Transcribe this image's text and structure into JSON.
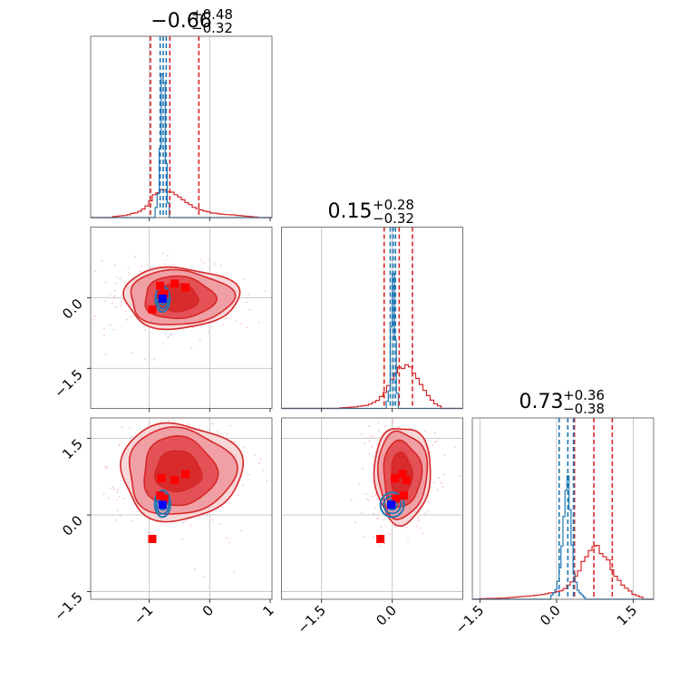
{
  "chart_data": {
    "type": "corner",
    "parameters": 3,
    "titles": [
      {
        "value": "−0.66",
        "sup": "+0.48",
        "sub": "−0.32"
      },
      {
        "value": "0.15",
        "sup": "+0.28",
        "sub": "−0.32"
      },
      {
        "value": "0.73",
        "sup": "+0.36",
        "sub": "−0.38"
      }
    ],
    "axes": {
      "p0": {
        "range": [
          -1.97,
          1.03
        ],
        "ticks": [
          -1,
          0,
          1
        ],
        "tick_labels": [
          "−1",
          "0",
          "1"
        ],
        "ref_lines": [
          -1,
          0
        ]
      },
      "p1": {
        "range": [
          -2.35,
          1.5
        ],
        "ticks": [
          -1.5,
          0.0
        ],
        "tick_labels": [
          "−1.5",
          "0.0"
        ],
        "ref_lines": [
          -1.5,
          0.0
        ]
      },
      "p2": {
        "range": [
          -1.65,
          1.9
        ],
        "ticks": [
          -1.5,
          0.0,
          1.5
        ],
        "tick_labels": [
          "−1.5",
          "0.0",
          "1.5"
        ],
        "ref_lines": [
          -1.5,
          0.0,
          1.5
        ]
      }
    },
    "series": [
      {
        "name": "",
        "color": "#d62728"
      },
      {
        "name": "",
        "color": "#1f77b4"
      }
    ],
    "quantile_lines": {
      "red": [
        [
          -0.98,
          -0.66,
          -0.18
        ],
        [
          -0.17,
          0.15,
          0.43
        ],
        [
          0.35,
          0.73,
          1.09
        ]
      ],
      "blue": [
        [
          -0.82,
          -0.77,
          -0.72
        ],
        [
          -0.04,
          0.02,
          0.07
        ],
        [
          0.05,
          0.22,
          0.33
        ]
      ]
    },
    "histograms": {
      "red": [
        {
          "x": [
            -1.6,
            -1.4,
            -1.2,
            -1.05,
            -0.95,
            -0.85,
            -0.75,
            -0.65,
            -0.55,
            -0.45,
            -0.35,
            -0.2,
            0,
            0.2,
            0.4,
            0.6,
            0.8
          ],
          "y": [
            0.005,
            0.012,
            0.03,
            0.06,
            0.12,
            0.15,
            0.16,
            0.15,
            0.13,
            0.1,
            0.08,
            0.05,
            0.03,
            0.02,
            0.015,
            0.008,
            0.003
          ]
        },
        {
          "x": [
            -1.1,
            -0.8,
            -0.5,
            -0.3,
            -0.15,
            0,
            0.15,
            0.3,
            0.45,
            0.6,
            0.75,
            0.9,
            1.05
          ],
          "y": [
            0.003,
            0.008,
            0.02,
            0.05,
            0.1,
            0.17,
            0.24,
            0.25,
            0.22,
            0.15,
            0.08,
            0.03,
            0.008
          ]
        },
        {
          "x": [
            -1.5,
            -1.0,
            -0.5,
            -0.2,
            0.1,
            0.3,
            0.5,
            0.65,
            0.8,
            0.95,
            1.1,
            1.3,
            1.5,
            1.7
          ],
          "y": [
            0.003,
            0.007,
            0.02,
            0.03,
            0.05,
            0.1,
            0.2,
            0.28,
            0.3,
            0.26,
            0.16,
            0.08,
            0.03,
            0.008
          ]
        }
      ],
      "blue": [
        {
          "x": [
            -0.9,
            -0.85,
            -0.82,
            -0.8,
            -0.78,
            -0.77,
            -0.76,
            -0.74,
            -0.72,
            -0.7,
            -0.66
          ],
          "y": [
            0.02,
            0.15,
            0.4,
            0.75,
            0.9,
            0.96,
            0.88,
            0.6,
            0.3,
            0.12,
            0.02
          ]
        },
        {
          "x": [
            -0.12,
            -0.06,
            -0.03,
            0,
            0.02,
            0.04,
            0.07,
            0.1,
            0.15
          ],
          "y": [
            0.02,
            0.1,
            0.35,
            0.72,
            0.85,
            0.74,
            0.35,
            0.1,
            0.02
          ]
        },
        {
          "x": [
            -0.1,
            0,
            0.08,
            0.14,
            0.19,
            0.22,
            0.25,
            0.29,
            0.34,
            0.42,
            0.55
          ],
          "y": [
            0.02,
            0.06,
            0.2,
            0.45,
            0.68,
            0.74,
            0.62,
            0.36,
            0.15,
            0.05,
            0.01
          ]
        }
      ]
    },
    "markers": {
      "red": [
        {
          "p0": -0.58,
          "p1": 0.3,
          "p2": 0.68
        },
        {
          "p0": -0.4,
          "p1": 0.22,
          "p2": 0.8
        },
        {
          "p0": -0.8,
          "p1": 0.06,
          "p2": 0.72
        },
        {
          "p0": -0.95,
          "p1": -0.25,
          "p2": -0.47
        },
        {
          "p0": -0.75,
          "p1": 0.08,
          "p2": 0.32
        },
        {
          "p0": -0.82,
          "p1": 0.25,
          "p2": 0.38
        }
      ],
      "blue": [
        {
          "p0": -0.78,
          "p1": -0.02,
          "p2": 0.2
        }
      ]
    },
    "contours_red": {
      "p1_vs_p0": {
        "center": [
          -0.55,
          0.0
        ],
        "radii": [
          [
            0.33,
            0.3
          ],
          [
            0.58,
            0.45
          ],
          [
            0.85,
            0.58
          ],
          [
            0.95,
            0.65
          ]
        ]
      },
      "p2_vs_p0": {
        "center": [
          -0.55,
          0.85
        ],
        "radii": [
          [
            0.38,
            0.4
          ],
          [
            0.6,
            0.68
          ],
          [
            0.88,
            0.85
          ],
          [
            1.0,
            0.95
          ]
        ]
      },
      "p2_vs_p1": {
        "center": [
          0.18,
          0.8
        ],
        "radii": [
          [
            0.22,
            0.42
          ],
          [
            0.4,
            0.65
          ],
          [
            0.52,
            0.85
          ],
          [
            0.6,
            0.95
          ]
        ]
      }
    },
    "contours_blue": {
      "p1_vs_p0": {
        "center": [
          -0.78,
          -0.03
        ],
        "radii": [
          [
            0.05,
            0.12
          ],
          [
            0.09,
            0.2
          ],
          [
            0.12,
            0.27
          ]
        ]
      },
      "p2_vs_p0": {
        "center": [
          -0.78,
          0.22
        ],
        "radii": [
          [
            0.06,
            0.12
          ],
          [
            0.1,
            0.2
          ],
          [
            0.13,
            0.26
          ]
        ]
      },
      "p2_vs_p1": {
        "center": [
          0.0,
          0.2
        ],
        "radii": [
          [
            0.1,
            0.1
          ],
          [
            0.18,
            0.17
          ],
          [
            0.25,
            0.24
          ]
        ]
      }
    },
    "grid": true
  }
}
